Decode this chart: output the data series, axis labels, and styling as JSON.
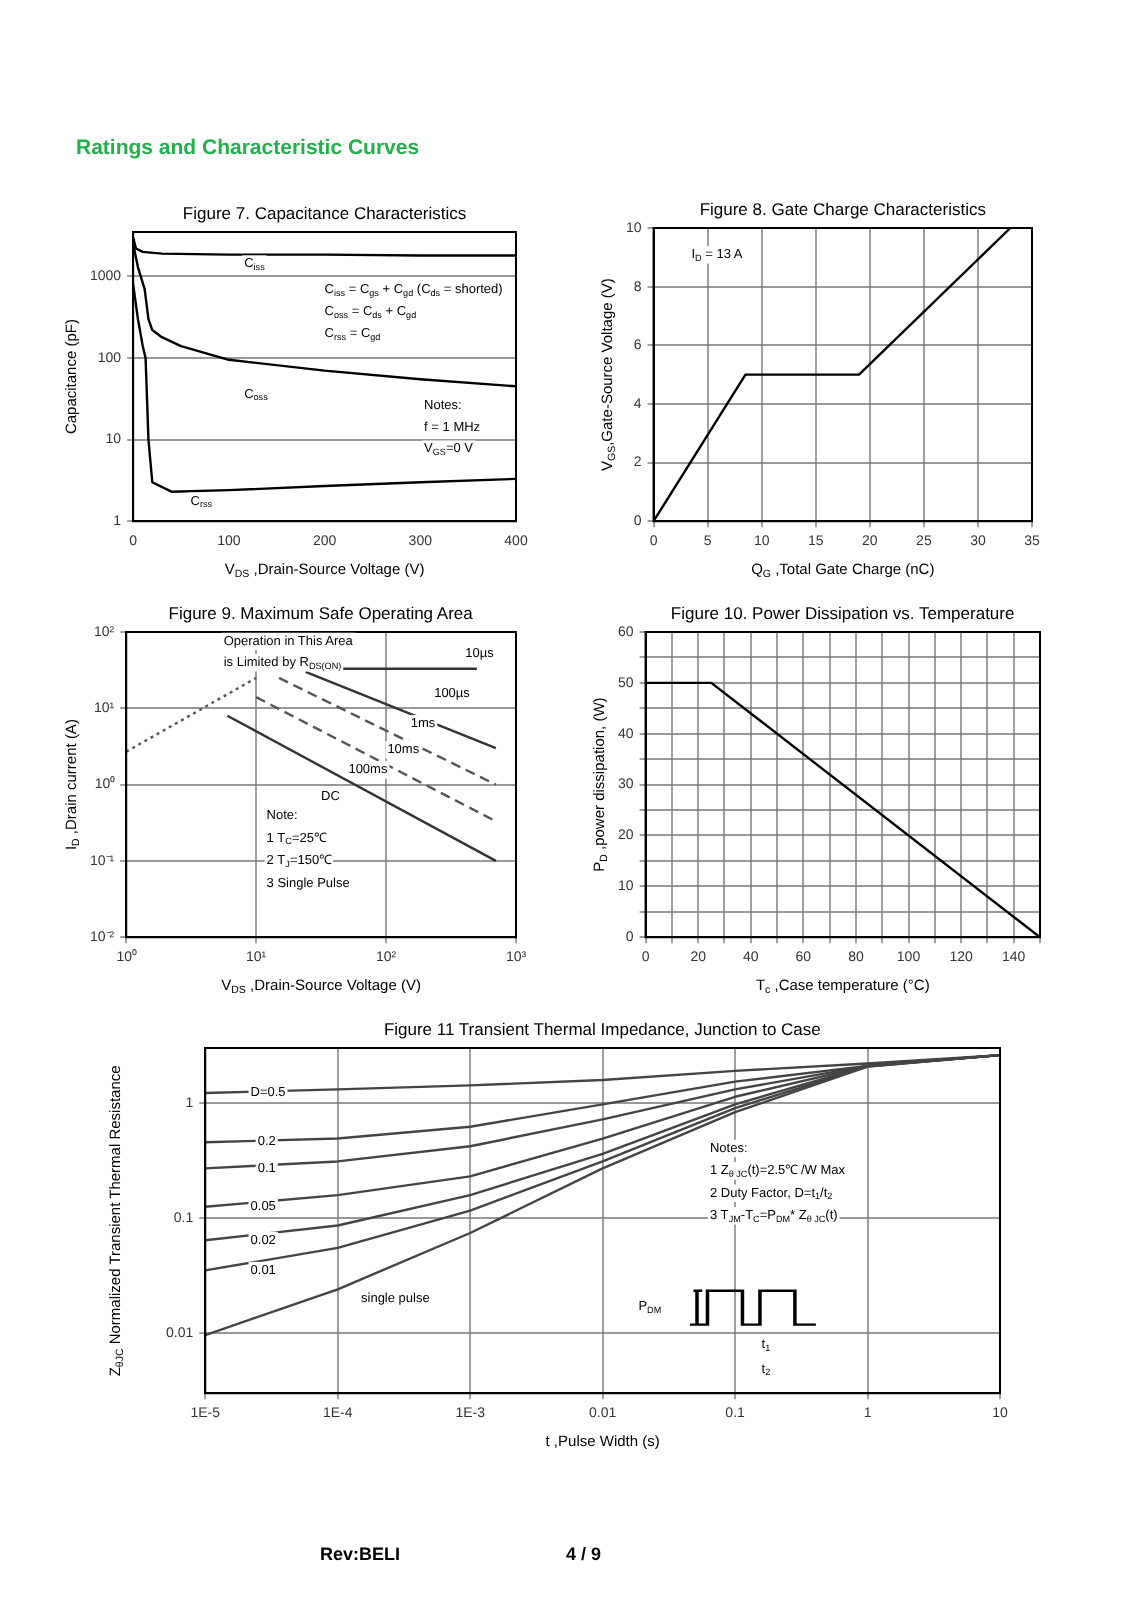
{
  "chart_data": [
    {
      "type": "line",
      "title": "Figure 7. Capacitance Characteristics",
      "xlabel": "V$_{DS}$ ,Drain-Source Voltage (V)",
      "ylabel": "Capacitance (pF)",
      "log": "y",
      "xlim": [
        0,
        400
      ],
      "xticks": [
        0,
        100,
        200,
        300,
        400
      ],
      "ylim": [
        1,
        3500
      ],
      "yticks": [
        1,
        10,
        100,
        1000
      ],
      "grid": "y",
      "annotations": [
        "Ratings and Characteristic Curves",
        "C$_{iss}$ = C$_{gs}$ + C$_{gd}$ (C$_{ds}$ = shorted)",
        "C$_{oss}$ = C$_{ds}$ + C$_{gd}$",
        "C$_{rss}$ = C$_{gd}$",
        "Notes:",
        "f = 1 MHz",
        "V$_{GS}$=0 V",
        "C$_{iss}$",
        "C$_{oss}$",
        "C$_{rss}$"
      ],
      "series": [
        {
          "x": [
            0,
            3,
            10,
            30,
            100,
            200,
            300,
            400
          ],
          "values": [
            3000,
            2200,
            2000,
            1900,
            1850,
            1850,
            1800,
            1800
          ],
          "color": "#000000"
        },
        {
          "x": [
            0,
            5,
            12,
            16,
            20,
            30,
            50,
            100,
            200,
            300,
            400
          ],
          "values": [
            2500,
            1300,
            700,
            300,
            220,
            180,
            140,
            95,
            70,
            55,
            45
          ],
          "color": "#000000"
        },
        {
          "x": [
            0,
            5,
            10,
            13,
            16,
            20,
            40,
            100,
            200,
            300,
            400
          ],
          "values": [
            800,
            300,
            140,
            100,
            10,
            3,
            2.3,
            2.4,
            2.7,
            3,
            3.3
          ],
          "color": "#000000"
        }
      ]
    },
    {
      "type": "line",
      "title": "Figure 8. Gate Charge Characteristics",
      "xlabel": "Q$_{G}$ ,Total Gate Charge (nC)",
      "ylabel": "V$_{GS}$,Gate-Source Voltage (V)",
      "xlim": [
        0,
        35
      ],
      "xticks": [
        0,
        5,
        10,
        15,
        20,
        25,
        30,
        35
      ],
      "ylim": [
        0,
        10
      ],
      "yticks": [
        0,
        2,
        4,
        6,
        8,
        10
      ],
      "grid": true,
      "annotations": [
        "I$_{D}$ = 13 A"
      ],
      "series": [
        {
          "x": [
            0,
            8.5,
            19,
            33
          ],
          "values": [
            0,
            5,
            5,
            10
          ],
          "color": "#000000"
        }
      ]
    },
    {
      "type": "line",
      "title": "Figure 9. Maximum Safe Operating Area",
      "xlabel": "V$_{DS}$ ,Drain-Source Voltage (V)",
      "ylabel": "I$_{D}$ ,Drain current (A)",
      "log": "xy",
      "xlim": [
        1,
        1000
      ],
      "xticks": [
        {
          "value": 1,
          "label": "10⁰"
        },
        {
          "value": 10,
          "label": "10¹"
        },
        {
          "value": 100,
          "label": "10²"
        },
        {
          "value": 1000,
          "label": "10³"
        }
      ],
      "ylim": [
        0.01,
        100
      ],
      "yticks": [
        {
          "value": 0.01,
          "label": "10⁻²"
        },
        {
          "value": 0.1,
          "label": "10⁻¹"
        },
        {
          "value": 1,
          "label": "10⁰"
        },
        {
          "value": 10,
          "label": "10¹"
        },
        {
          "value": 100,
          "label": "10²"
        }
      ],
      "grid": true,
      "annotations": [
        "Operation in This Area",
        "is Limited by R$_{DS(ON)}$",
        "Note:",
        "1 T$_{C}$=25℃",
        "2 T$_{J}$=150℃",
        "3 Single Pulse",
        "10µs",
        "100µs",
        "1ms",
        "10ms",
        "100ms",
        "DC"
      ],
      "series": [
        {
          "x": [
            1,
            10
          ],
          "values": [
            2.7,
            25
          ],
          "color": "#555555",
          "line_style": "dotted"
        },
        {
          "x": [
            10,
            500
          ],
          "values": [
            33,
            33
          ],
          "color": "#333333",
          "line_style": "solid"
        },
        {
          "x": [
            24,
            700
          ],
          "values": [
            30,
            3
          ],
          "color": "#333333",
          "line_style": "solid"
        },
        {
          "x": [
            15,
            700
          ],
          "values": [
            25,
            1
          ],
          "color": "#555555",
          "line_style": "dashed"
        },
        {
          "x": [
            10,
            700
          ],
          "values": [
            14,
            0.33
          ],
          "color": "#555555",
          "line_style": "dashed"
        },
        {
          "x": [
            6,
            700
          ],
          "values": [
            8,
            0.1
          ],
          "color": "#333333",
          "line_style": "solid"
        }
      ]
    },
    {
      "type": "line",
      "title": "Figure 10. Power Dissipation vs. Temperature",
      "xlabel": "T$_{c}$ ,Case temperature (°C)",
      "ylabel": "P$_{D}$ ,power dissipation, (W)",
      "xlim": [
        0,
        150
      ],
      "xticks": [
        0,
        {
          "value": 10,
          "label": null
        },
        20,
        {
          "value": 30,
          "label": null
        },
        40,
        {
          "value": 50,
          "label": null
        },
        60,
        {
          "value": 70,
          "label": null
        },
        80,
        {
          "value": 90,
          "label": null
        },
        100,
        {
          "value": 110,
          "label": null
        },
        120,
        {
          "value": 130,
          "label": null
        },
        140,
        {
          "value": 150,
          "label": null
        }
      ],
      "ylim": [
        0,
        60
      ],
      "yticks": [
        0,
        {
          "value": 5,
          "label": null
        },
        10,
        {
          "value": 15,
          "label": null
        },
        20,
        {
          "value": 25,
          "label": null
        },
        30,
        {
          "value": 35,
          "label": null
        },
        40,
        {
          "value": 45,
          "label": null
        },
        50,
        {
          "value": 55,
          "label": null
        },
        60
      ],
      "grid": true,
      "series": [
        {
          "x": [
            0,
            25,
            150
          ],
          "values": [
            50,
            50,
            0
          ],
          "color": "#000000"
        }
      ]
    },
    {
      "type": "line",
      "title": "Figure 11 Transient Thermal Impedance, Junction to Case",
      "xlabel": "t ,Pulse Width (s)",
      "ylabel": "Z$_{θJC}$ Normalized Transient Thermal Resistance",
      "log": "xy",
      "xlim": [
        1e-05,
        10
      ],
      "xticks": [
        {
          "value": 1e-05,
          "label": "1E-5"
        },
        {
          "value": 0.0001,
          "label": "1E-4"
        },
        {
          "value": 0.001,
          "label": "1E-3"
        },
        0.01,
        0.1,
        1,
        10
      ],
      "ylim": [
        0.003,
        3
      ],
      "yticks": [
        0.01,
        0.1,
        1
      ],
      "grid": true,
      "annotations": [
        "Notes:",
        "1 Z$_{θ JC}$(t)=2.5℃ /W Max",
        "2 Duty Factor, D=t$_{1}$/t$_{2}$",
        "3 T$_{JM}$-T$_{C}$=P$_{DM}$* Z$_{θ JC}$(t)",
        "P$_{DM}$",
        "t$_{1}$",
        "t$_{2}$",
        "Rev:BELI",
        "4 / 9",
        "D=0.5",
        "0.2",
        "0.1",
        "0.05",
        "0.02",
        "0.01",
        "single pulse"
      ],
      "series": [
        {
          "x": [
            1e-05,
            0.0001,
            0.001,
            0.01,
            0.1,
            1,
            10
          ],
          "values": [
            0.0096,
            0.024,
            0.074,
            0.27,
            0.83,
            2.07,
            2.6
          ],
          "color": "#444444"
        },
        {
          "x": [
            1e-05,
            0.0001,
            0.001,
            0.01,
            0.1,
            1,
            10
          ],
          "values": [
            0.035,
            0.055,
            0.116,
            0.31,
            0.9,
            2.07,
            2.6
          ],
          "color": "#444444"
        },
        {
          "x": [
            1e-05,
            0.0001,
            0.001,
            0.01,
            0.1,
            1,
            10
          ],
          "values": [
            0.064,
            0.086,
            0.158,
            0.36,
            0.97,
            2.1,
            2.6
          ],
          "color": "#444444"
        },
        {
          "x": [
            1e-05,
            0.0001,
            0.001,
            0.01,
            0.1,
            1,
            10
          ],
          "values": [
            0.125,
            0.158,
            0.23,
            0.49,
            1.13,
            2.1,
            2.6
          ],
          "color": "#444444"
        },
        {
          "x": [
            1e-05,
            0.0001,
            0.001,
            0.01,
            0.1,
            1,
            10
          ],
          "values": [
            0.27,
            0.31,
            0.42,
            0.72,
            1.31,
            2.1,
            2.6
          ],
          "color": "#444444"
        },
        {
          "x": [
            1e-05,
            0.0001,
            0.001,
            0.01,
            0.1,
            1,
            10
          ],
          "values": [
            0.455,
            0.49,
            0.62,
            0.97,
            1.53,
            2.1,
            2.6
          ],
          "color": "#444444"
        },
        {
          "x": [
            1e-05,
            0.0001,
            0.001,
            0.01,
            0.1,
            1,
            10
          ],
          "values": [
            1.22,
            1.31,
            1.42,
            1.58,
            1.9,
            2.2,
            2.6
          ],
          "color": "#444444"
        }
      ]
    }
  ]
}
